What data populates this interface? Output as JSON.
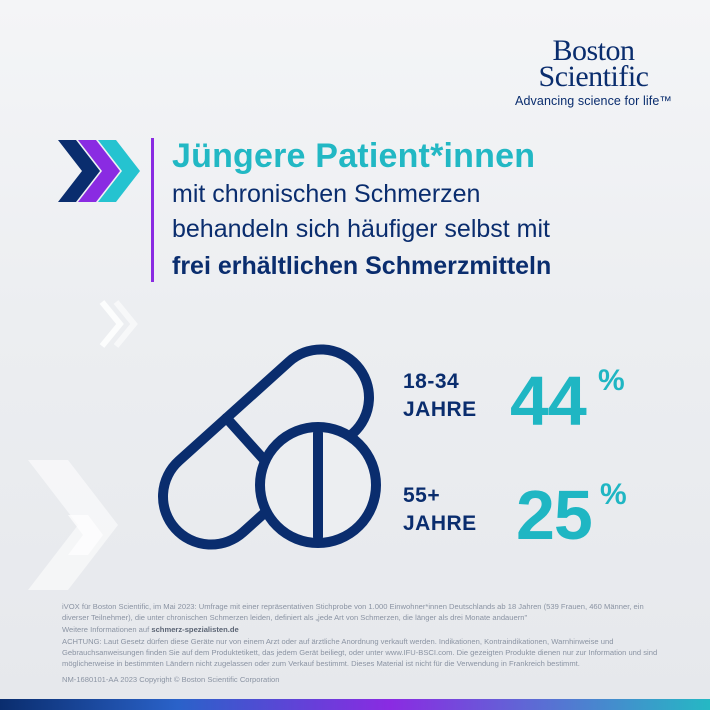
{
  "logo": {
    "line1": "Boston",
    "line2": "Scientific",
    "tagline": "Advancing science for life™"
  },
  "headline": {
    "main": "Jüngere Patient*innen",
    "line2": "mit chronischen Schmerzen",
    "line3": "behandeln sich häufiger selbst mit",
    "line4": "frei erhältlichen Schmerzmitteln"
  },
  "stats": [
    {
      "age_range": "18-34",
      "unit": "JAHRE",
      "value": "44",
      "percent_sign": "%"
    },
    {
      "age_range": "55+",
      "unit": "JAHRE",
      "value": "25",
      "percent_sign": "%"
    }
  ],
  "footer": {
    "source": "iVOX für Boston Scientific, im Mai 2023: Umfrage mit einer repräsentativen Stichprobe von 1.000 Einwohner*innen Deutschlands ab 18 Jahren (539 Frauen, 460 Männer, ein diverser Teilnehmer), die unter chronischen Schmerzen leiden, definiert als „jede Art von Schmerzen, die länger als drei Monate andauern\"",
    "more_info_prefix": "Weitere Informationen auf ",
    "more_info_link": "schmerz-spezialisten.de",
    "warning": "ACHTUNG: Laut Gesetz dürfen diese Geräte nur von einem Arzt oder auf ärztliche Anordnung verkauft werden. Indikationen, Kontraindikationen, Warnhinweise und Gebrauchsanweisungen finden Sie auf dem Produktetikett, das jedem Gerät beiliegt, oder unter www.IFU-BSCI.com. Die gezeigten Produkte dienen nur zur Information und sind möglicherweise in bestimmten Ländern nicht zugelassen oder zum Verkauf bestimmt. Dieses Material ist nicht für die Verwendung in Frankreich bestimmt.",
    "copyright": "NM-1680101-AA 2023  Copyright © Boston Scientific Corporation"
  },
  "colors": {
    "navy": "#0a2d6e",
    "teal": "#1fb6c3",
    "purple": "#8a2be2",
    "blue": "#2a62c9"
  },
  "icons": {
    "header_arrows": "triple-chevron-arrows-icon",
    "pill": "capsule-and-tablet-icon"
  }
}
